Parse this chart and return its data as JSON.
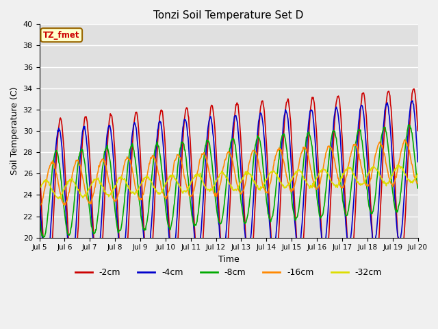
{
  "title": "Tonzi Soil Temperature Set D",
  "xlabel": "Time",
  "ylabel": "Soil Temperature (C)",
  "ylim": [
    20,
    40
  ],
  "annotation_text": "TZ_fmet",
  "annotation_color": "#cc0000",
  "annotation_bg": "#ffffcc",
  "annotation_border": "#996600",
  "tick_labels": [
    "Jul 5",
    "Jul 6",
    "Jul 7",
    "Jul 8",
    "Jul 9",
    "Jul 10",
    "Jul 11",
    "Jul 12",
    "Jul 13",
    "Jul 14",
    "Jul 15",
    "Jul 16",
    "Jul 17",
    "Jul 18",
    "Jul 19",
    "Jul 20"
  ],
  "series": [
    {
      "label": "-2cm",
      "color": "#cc0000",
      "lw": 1.2
    },
    {
      "label": "-4cm",
      "color": "#0000cc",
      "lw": 1.2
    },
    {
      "label": "-8cm",
      "color": "#00aa00",
      "lw": 1.2
    },
    {
      "label": "-16cm",
      "color": "#ff8800",
      "lw": 1.2
    },
    {
      "label": "-32cm",
      "color": "#dddd00",
      "lw": 1.2
    }
  ]
}
